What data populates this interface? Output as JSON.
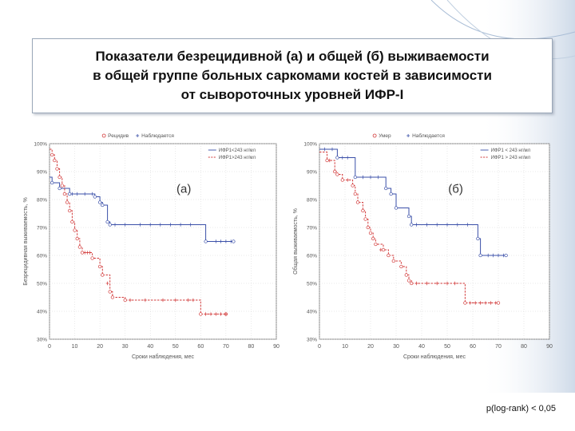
{
  "title": {
    "line1": "Показатели безрецидивной (а) и общей  (б) выживаемости",
    "line2": "в общей группе больных саркомами костей в зависимости",
    "line3": "от сывороточных уровней ИФР-I"
  },
  "pvalue": "p(log-rank) < 0,05",
  "colors": {
    "blue": "#3a4fa8",
    "red": "#d23a3a",
    "box_border": "#9aa7b8"
  },
  "chart_data": [
    {
      "type": "line",
      "panel_label": "(а)",
      "xlabel": "Сроки наблюдения, мес",
      "ylabel": "Безрецидивная выживаемость, %",
      "top_legend": [
        "Рецидив",
        "Наблюдается"
      ],
      "xlim": [
        0,
        90
      ],
      "ylim": [
        30,
        100
      ],
      "xticks": [
        "0",
        "10",
        "20",
        "30",
        "40",
        "50",
        "60",
        "70",
        "80",
        "90"
      ],
      "yticks": [
        "30%",
        "40%",
        "50%",
        "60%",
        "70%",
        "80%",
        "90%",
        "100%"
      ],
      "series": [
        {
          "name": "ИФР1<243 нг/мл",
          "color": "#3a4fa8",
          "steps": [
            [
              0,
              88
            ],
            [
              1,
              86
            ],
            [
              4,
              84
            ],
            [
              8,
              82
            ],
            [
              18,
              81
            ],
            [
              20,
              79
            ],
            [
              21,
              78
            ],
            [
              23,
              72
            ],
            [
              24,
              71
            ],
            [
              62,
              65
            ],
            [
              73,
              65
            ]
          ],
          "censored": [
            [
              9,
              82
            ],
            [
              11,
              82
            ],
            [
              14,
              82
            ],
            [
              17,
              82
            ],
            [
              26,
              71
            ],
            [
              30,
              71
            ],
            [
              36,
              71
            ],
            [
              40,
              71
            ],
            [
              44,
              71
            ],
            [
              48,
              71
            ],
            [
              52,
              71
            ],
            [
              56,
              71
            ],
            [
              66,
              65
            ],
            [
              68,
              65
            ],
            [
              70,
              65
            ],
            [
              72,
              65
            ]
          ]
        },
        {
          "name": "ИФР1>243 нг/мл",
          "color": "#d23a3a",
          "steps": [
            [
              0,
              98
            ],
            [
              1,
              96
            ],
            [
              2,
              94
            ],
            [
              3,
              91
            ],
            [
              4,
              88
            ],
            [
              5,
              85
            ],
            [
              6,
              82
            ],
            [
              7,
              79
            ],
            [
              8,
              76
            ],
            [
              9,
              72
            ],
            [
              10,
              69
            ],
            [
              11,
              66
            ],
            [
              12,
              63
            ],
            [
              13,
              61
            ],
            [
              17,
              59
            ],
            [
              20,
              56
            ],
            [
              21,
              53
            ],
            [
              24,
              47
            ],
            [
              25,
              45
            ],
            [
              30,
              44
            ],
            [
              60,
              39
            ],
            [
              70,
              39
            ]
          ],
          "censored": [
            [
              14,
              61
            ],
            [
              15,
              61
            ],
            [
              16,
              61
            ],
            [
              23,
              50
            ],
            [
              32,
              44
            ],
            [
              38,
              44
            ],
            [
              45,
              44
            ],
            [
              50,
              44
            ],
            [
              55,
              44
            ],
            [
              57,
              44
            ],
            [
              62,
              39
            ],
            [
              64,
              39
            ],
            [
              66,
              39
            ],
            [
              68,
              39
            ],
            [
              70,
              39
            ]
          ]
        }
      ]
    },
    {
      "type": "line",
      "panel_label": "(б)",
      "xlabel": "Сроки наблюдения, мес",
      "ylabel": "Общая выживаемость, %",
      "top_legend": [
        "Умер",
        "Наблюдается"
      ],
      "xlim": [
        0,
        90
      ],
      "ylim": [
        30,
        100
      ],
      "xticks": [
        "0",
        "10",
        "20",
        "30",
        "40",
        "50",
        "60",
        "70",
        "80",
        "90"
      ],
      "yticks": [
        "30%",
        "40%",
        "50%",
        "60%",
        "70%",
        "80%",
        "90%",
        "100%"
      ],
      "series": [
        {
          "name": "ИФР1 < 243 нг/мл",
          "color": "#3a4fa8",
          "steps": [
            [
              0,
              98
            ],
            [
              7,
              95
            ],
            [
              14,
              88
            ],
            [
              26,
              84
            ],
            [
              28,
              82
            ],
            [
              30,
              77
            ],
            [
              35,
              74
            ],
            [
              36,
              71
            ],
            [
              62,
              66
            ],
            [
              63,
              60
            ],
            [
              73,
              60
            ]
          ],
          "censored": [
            [
              2,
              98
            ],
            [
              5,
              98
            ],
            [
              9,
              95
            ],
            [
              11,
              95
            ],
            [
              17,
              88
            ],
            [
              20,
              88
            ],
            [
              23,
              88
            ],
            [
              38,
              71
            ],
            [
              42,
              71
            ],
            [
              46,
              71
            ],
            [
              50,
              71
            ],
            [
              54,
              71
            ],
            [
              58,
              71
            ],
            [
              66,
              60
            ],
            [
              68,
              60
            ],
            [
              70,
              60
            ],
            [
              72,
              60
            ]
          ]
        },
        {
          "name": "ИФР1 > 243 нг/мл",
          "color": "#d23a3a",
          "steps": [
            [
              0,
              97
            ],
            [
              3,
              94
            ],
            [
              6,
              90
            ],
            [
              7,
              89
            ],
            [
              9,
              87
            ],
            [
              13,
              85
            ],
            [
              14,
              82
            ],
            [
              15,
              79
            ],
            [
              17,
              76
            ],
            [
              18,
              73
            ],
            [
              19,
              70
            ],
            [
              20,
              68
            ],
            [
              21,
              66
            ],
            [
              22,
              64
            ],
            [
              25,
              62
            ],
            [
              27,
              60
            ],
            [
              29,
              58
            ],
            [
              32,
              56
            ],
            [
              34,
              53
            ],
            [
              35,
              51
            ],
            [
              36,
              50
            ],
            [
              57,
              43
            ],
            [
              70,
              43
            ]
          ],
          "censored": [
            [
              4,
              94
            ],
            [
              11,
              87
            ],
            [
              24,
              62
            ],
            [
              38,
              50
            ],
            [
              42,
              50
            ],
            [
              46,
              50
            ],
            [
              50,
              50
            ],
            [
              53,
              50
            ],
            [
              59,
              43
            ],
            [
              61,
              43
            ],
            [
              63,
              43
            ],
            [
              65,
              43
            ],
            [
              67,
              43
            ],
            [
              69,
              43
            ]
          ]
        }
      ]
    }
  ]
}
